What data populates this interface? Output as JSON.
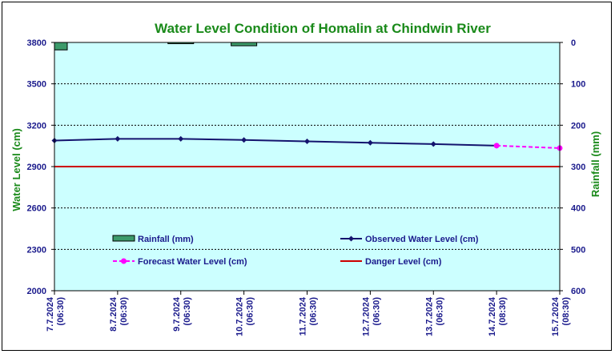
{
  "chart_data": {
    "type": "line",
    "title": "Water Level Condition of Homalin at Chindwin River",
    "ylabel": "Water Level (cm)",
    "y2label": "Rainfall (mm)",
    "ylim": [
      2000,
      3800
    ],
    "y_ticks": [
      2000,
      2300,
      2600,
      2900,
      3200,
      3500,
      3800
    ],
    "y2lim": [
      0,
      600
    ],
    "y2_ticks": [
      0,
      100,
      200,
      300,
      400,
      500,
      600
    ],
    "y2_inverted": true,
    "grid": true,
    "x_categories": [
      {
        "date": "7.7.2024",
        "time": "(06:30)"
      },
      {
        "date": "8.7.2024",
        "time": "(06:30)"
      },
      {
        "date": "9.7.2024",
        "time": "(06:30)"
      },
      {
        "date": "10.7.2024",
        "time": "(06:30)"
      },
      {
        "date": "11.7.2024",
        "time": "(06:30)"
      },
      {
        "date": "12.7.2024",
        "time": "(06:30)"
      },
      {
        "date": "13.7.2024",
        "time": "(06:30)"
      },
      {
        "date": "14.7.2024",
        "time": "(08:30)"
      },
      {
        "date": "15.7.2024",
        "time": "(08:30)"
      }
    ],
    "series": [
      {
        "name": "Rainfall (mm)",
        "kind": "bar",
        "axis": "right",
        "color": "#3c9a6a",
        "values": [
          18,
          null,
          3,
          8,
          null,
          null,
          null,
          null,
          null
        ]
      },
      {
        "name": "Observed Water Level (cm)",
        "kind": "line",
        "axis": "left",
        "color": "#14146e",
        "marker": "diamond",
        "values": [
          3089,
          3101,
          3101,
          3093,
          3083,
          3073,
          3063,
          3052,
          null
        ]
      },
      {
        "name": "Forecast Water Level (cm)",
        "kind": "line",
        "axis": "left",
        "color": "#ff00ff",
        "dashed": true,
        "marker": "circle",
        "values": [
          null,
          null,
          null,
          null,
          null,
          null,
          null,
          3052,
          3034
        ]
      },
      {
        "name": "Danger Level (cm)",
        "kind": "hline",
        "axis": "left",
        "color": "#cc0000",
        "value": 2900
      }
    ],
    "legend": {
      "placement": "lower-center",
      "entries": [
        "Rainfall (mm)",
        "Observed Water Level (cm)",
        "Forecast Water Level (cm)",
        "Danger Level (cm)"
      ]
    },
    "colors": {
      "plot_bg": "#ccffff",
      "text": "#1a1a8c",
      "title": "#1a8a1a"
    }
  }
}
